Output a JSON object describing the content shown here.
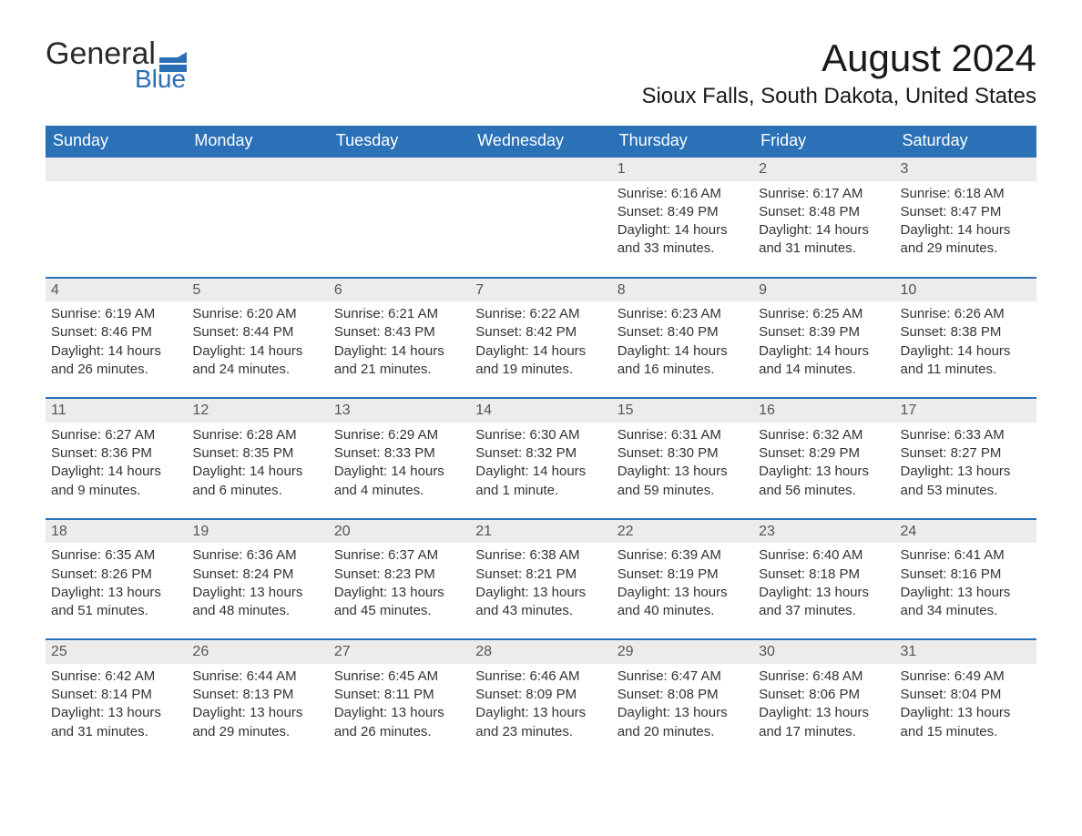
{
  "logo": {
    "top": "General",
    "bottom": "Blue"
  },
  "title": "August 2024",
  "location": "Sioux Falls, South Dakota, United States",
  "colors": {
    "header_bg": "#2a71b8",
    "header_text": "#ffffff",
    "daynum_bg": "#ececec",
    "border": "#2a71b8",
    "logo_blue": "#2a6fb5"
  },
  "fonts": {
    "title_size": 42,
    "location_size": 24,
    "dayhead_size": 18,
    "cell_size": 15
  },
  "layout": {
    "columns": 7,
    "rows": 5,
    "first_day_column_index": 4
  },
  "day_headers": [
    "Sunday",
    "Monday",
    "Tuesday",
    "Wednesday",
    "Thursday",
    "Friday",
    "Saturday"
  ],
  "days": [
    {
      "n": 1,
      "sunrise": "6:16 AM",
      "sunset": "8:49 PM",
      "daylight": "14 hours and 33 minutes."
    },
    {
      "n": 2,
      "sunrise": "6:17 AM",
      "sunset": "8:48 PM",
      "daylight": "14 hours and 31 minutes."
    },
    {
      "n": 3,
      "sunrise": "6:18 AM",
      "sunset": "8:47 PM",
      "daylight": "14 hours and 29 minutes."
    },
    {
      "n": 4,
      "sunrise": "6:19 AM",
      "sunset": "8:46 PM",
      "daylight": "14 hours and 26 minutes."
    },
    {
      "n": 5,
      "sunrise": "6:20 AM",
      "sunset": "8:44 PM",
      "daylight": "14 hours and 24 minutes."
    },
    {
      "n": 6,
      "sunrise": "6:21 AM",
      "sunset": "8:43 PM",
      "daylight": "14 hours and 21 minutes."
    },
    {
      "n": 7,
      "sunrise": "6:22 AM",
      "sunset": "8:42 PM",
      "daylight": "14 hours and 19 minutes."
    },
    {
      "n": 8,
      "sunrise": "6:23 AM",
      "sunset": "8:40 PM",
      "daylight": "14 hours and 16 minutes."
    },
    {
      "n": 9,
      "sunrise": "6:25 AM",
      "sunset": "8:39 PM",
      "daylight": "14 hours and 14 minutes."
    },
    {
      "n": 10,
      "sunrise": "6:26 AM",
      "sunset": "8:38 PM",
      "daylight": "14 hours and 11 minutes."
    },
    {
      "n": 11,
      "sunrise": "6:27 AM",
      "sunset": "8:36 PM",
      "daylight": "14 hours and 9 minutes."
    },
    {
      "n": 12,
      "sunrise": "6:28 AM",
      "sunset": "8:35 PM",
      "daylight": "14 hours and 6 minutes."
    },
    {
      "n": 13,
      "sunrise": "6:29 AM",
      "sunset": "8:33 PM",
      "daylight": "14 hours and 4 minutes."
    },
    {
      "n": 14,
      "sunrise": "6:30 AM",
      "sunset": "8:32 PM",
      "daylight": "14 hours and 1 minute."
    },
    {
      "n": 15,
      "sunrise": "6:31 AM",
      "sunset": "8:30 PM",
      "daylight": "13 hours and 59 minutes."
    },
    {
      "n": 16,
      "sunrise": "6:32 AM",
      "sunset": "8:29 PM",
      "daylight": "13 hours and 56 minutes."
    },
    {
      "n": 17,
      "sunrise": "6:33 AM",
      "sunset": "8:27 PM",
      "daylight": "13 hours and 53 minutes."
    },
    {
      "n": 18,
      "sunrise": "6:35 AM",
      "sunset": "8:26 PM",
      "daylight": "13 hours and 51 minutes."
    },
    {
      "n": 19,
      "sunrise": "6:36 AM",
      "sunset": "8:24 PM",
      "daylight": "13 hours and 48 minutes."
    },
    {
      "n": 20,
      "sunrise": "6:37 AM",
      "sunset": "8:23 PM",
      "daylight": "13 hours and 45 minutes."
    },
    {
      "n": 21,
      "sunrise": "6:38 AM",
      "sunset": "8:21 PM",
      "daylight": "13 hours and 43 minutes."
    },
    {
      "n": 22,
      "sunrise": "6:39 AM",
      "sunset": "8:19 PM",
      "daylight": "13 hours and 40 minutes."
    },
    {
      "n": 23,
      "sunrise": "6:40 AM",
      "sunset": "8:18 PM",
      "daylight": "13 hours and 37 minutes."
    },
    {
      "n": 24,
      "sunrise": "6:41 AM",
      "sunset": "8:16 PM",
      "daylight": "13 hours and 34 minutes."
    },
    {
      "n": 25,
      "sunrise": "6:42 AM",
      "sunset": "8:14 PM",
      "daylight": "13 hours and 31 minutes."
    },
    {
      "n": 26,
      "sunrise": "6:44 AM",
      "sunset": "8:13 PM",
      "daylight": "13 hours and 29 minutes."
    },
    {
      "n": 27,
      "sunrise": "6:45 AM",
      "sunset": "8:11 PM",
      "daylight": "13 hours and 26 minutes."
    },
    {
      "n": 28,
      "sunrise": "6:46 AM",
      "sunset": "8:09 PM",
      "daylight": "13 hours and 23 minutes."
    },
    {
      "n": 29,
      "sunrise": "6:47 AM",
      "sunset": "8:08 PM",
      "daylight": "13 hours and 20 minutes."
    },
    {
      "n": 30,
      "sunrise": "6:48 AM",
      "sunset": "8:06 PM",
      "daylight": "13 hours and 17 minutes."
    },
    {
      "n": 31,
      "sunrise": "6:49 AM",
      "sunset": "8:04 PM",
      "daylight": "13 hours and 15 minutes."
    }
  ],
  "labels": {
    "sunrise": "Sunrise:",
    "sunset": "Sunset:",
    "daylight": "Daylight:"
  }
}
